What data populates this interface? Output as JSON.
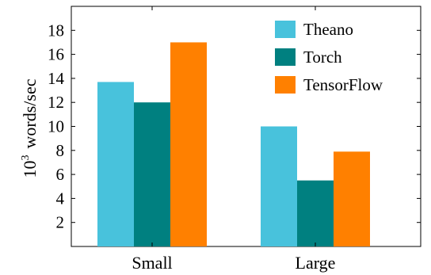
{
  "chart_data": {
    "type": "bar",
    "categories": [
      "Small",
      "Large"
    ],
    "series": [
      {
        "name": "Theano",
        "color": "#48c2dc",
        "values": [
          13.7,
          10.0
        ]
      },
      {
        "name": "Torch",
        "color": "#008080",
        "values": [
          12.0,
          5.5
        ]
      },
      {
        "name": "TensorFlow",
        "color": "#ff8000",
        "values": [
          17.0,
          7.9
        ]
      }
    ],
    "ylabel_base": "10",
    "ylabel_exp": "3",
    "ylabel_rest": "words/sec",
    "xlabel": "",
    "title": "",
    "ylim": [
      0,
      20
    ],
    "yticks": [
      2,
      4,
      6,
      8,
      10,
      12,
      14,
      16,
      18
    ],
    "legend_position": "top-right",
    "grid": false
  }
}
